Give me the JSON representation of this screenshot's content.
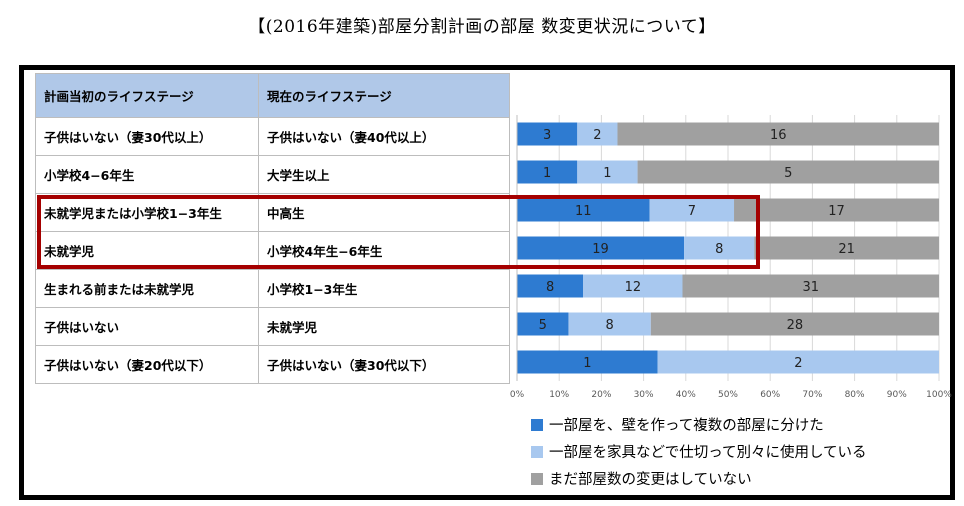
{
  "title": "【(2016年建築)部屋分割計画の部屋 数変更状況について】",
  "table": {
    "headers": [
      "計画当初のライフステージ",
      "現在のライフステージ"
    ],
    "rows": [
      {
        "initial": "子供はいない（妻30代以上）",
        "current": "子供はいない（妻40代以上）"
      },
      {
        "initial": "小学校4−6年生",
        "current": "大学生以上"
      },
      {
        "initial": "未就学児または小学校1−3年生",
        "current": "中高生"
      },
      {
        "initial": "未就学児",
        "current": "小学校4年生−6年生"
      },
      {
        "initial": "生まれる前または未就学児",
        "current": "小学校1−3年生"
      },
      {
        "initial": "子供はいない",
        "current": "未就学児"
      },
      {
        "initial": "子供はいない（妻20代以下）",
        "current": "子供はいない（妻30代以下）"
      }
    ]
  },
  "chart_data": {
    "type": "bar",
    "orientation": "horizontal",
    "stacked": "percent",
    "x_ticks": [
      "0%",
      "10%",
      "20%",
      "30%",
      "40%",
      "50%",
      "60%",
      "70%",
      "80%",
      "90%",
      "100%"
    ],
    "xlim": [
      0,
      100
    ],
    "grid": true,
    "legend_position": "bottom",
    "series": [
      {
        "name": "一部屋を、壁を作って複数の部屋に分けた",
        "color": "#2e7bd1",
        "values": [
          3,
          1,
          11,
          19,
          8,
          5,
          1
        ]
      },
      {
        "name": "一部屋を家具などで仕切って別々に使用している",
        "color": "#a8c8ef",
        "values": [
          2,
          1,
          7,
          8,
          12,
          8,
          2
        ]
      },
      {
        "name": "まだ部屋数の変更はしていない",
        "color": "#a0a0a0",
        "values": [
          16,
          5,
          17,
          21,
          31,
          28,
          0
        ]
      }
    ]
  },
  "highlight_color": "#a50000"
}
